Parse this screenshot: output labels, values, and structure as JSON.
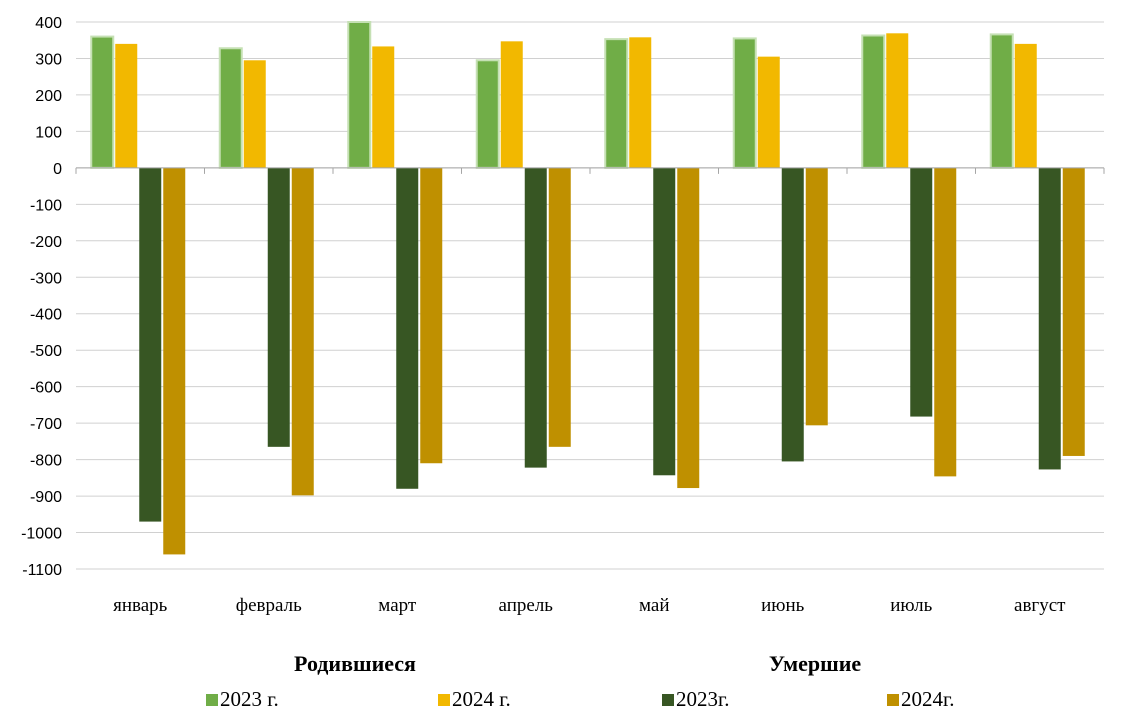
{
  "chart_data": {
    "type": "bar",
    "categories": [
      "январь",
      "февраль",
      "март",
      "апрель",
      "май",
      "июнь",
      "июль",
      "август"
    ],
    "ylim": [
      -1100,
      400
    ],
    "yticks": [
      400,
      300,
      200,
      100,
      0,
      -100,
      -200,
      -300,
      -400,
      -500,
      -600,
      -700,
      -800,
      -900,
      -1000,
      -1100
    ],
    "grid": true,
    "legend_position": "bottom",
    "groups": [
      {
        "title": "Родившиеся",
        "series_indexes": [
          0,
          1
        ]
      },
      {
        "title": "Умершие",
        "series_indexes": [
          2,
          3
        ]
      }
    ],
    "series": [
      {
        "name": "2023 г.",
        "color": "#70ad47",
        "values": [
          360,
          328,
          400,
          295,
          353,
          355,
          363,
          366
        ]
      },
      {
        "name": "2024 г.",
        "color": "#f2b800",
        "values": [
          340,
          295,
          333,
          347,
          358,
          305,
          369,
          340
        ]
      },
      {
        "name": "2023г.",
        "color": "#375623",
        "values": [
          -970,
          -765,
          -880,
          -822,
          -843,
          -805,
          -682,
          -827
        ]
      },
      {
        "name": "2024г.",
        "color": "#bf9000",
        "values": [
          -1060,
          -898,
          -810,
          -765,
          -878,
          -706,
          -846,
          -790
        ]
      }
    ]
  }
}
